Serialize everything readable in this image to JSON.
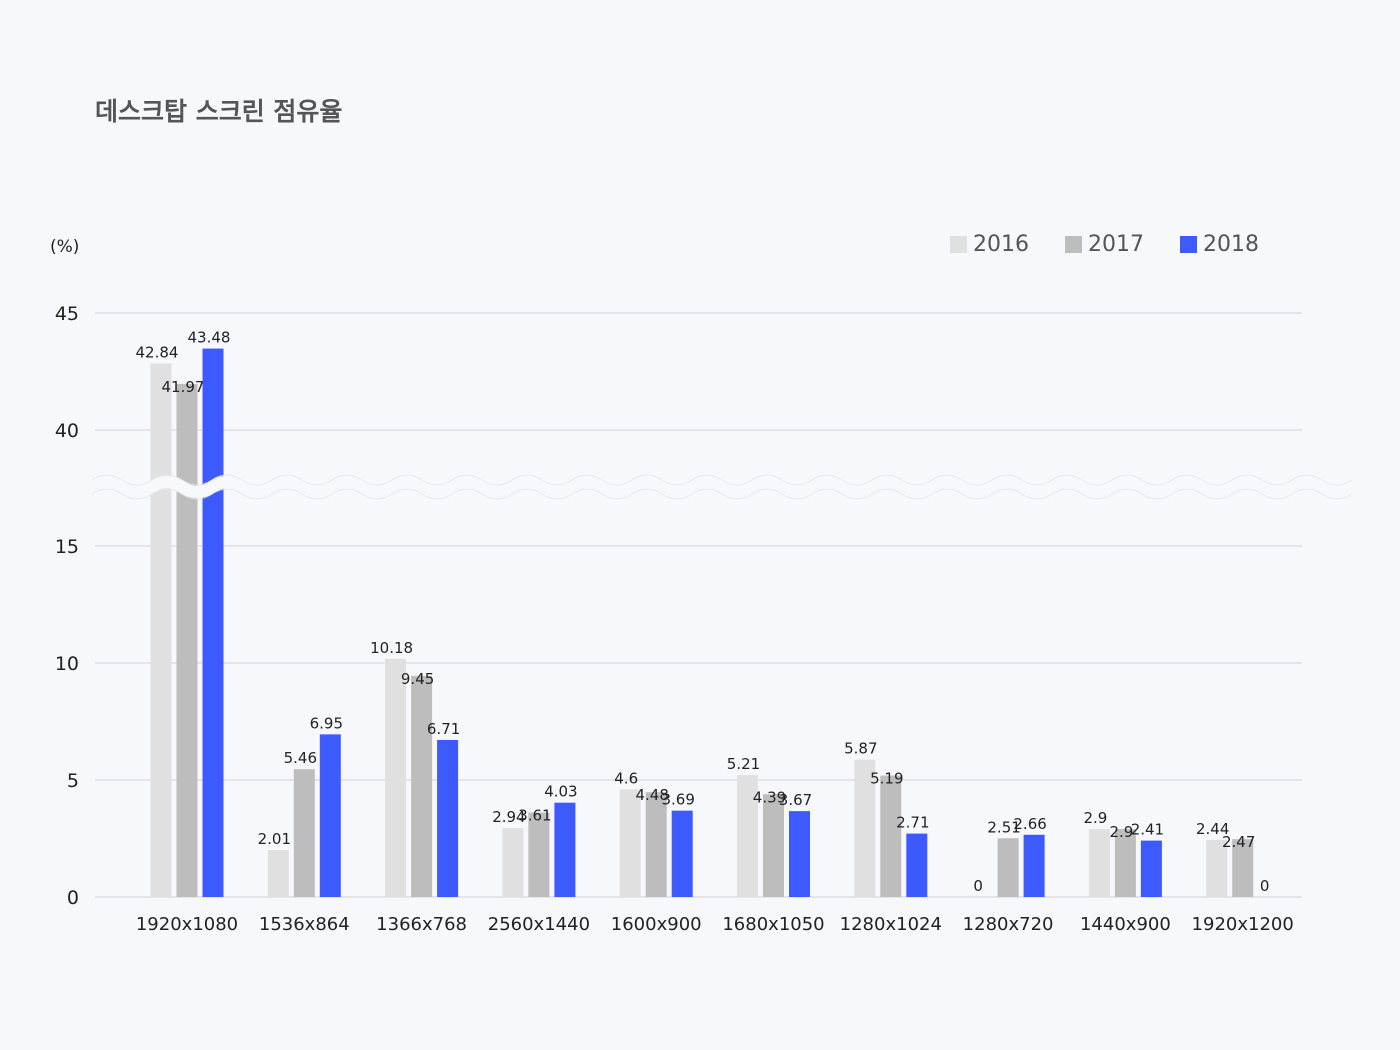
{
  "title": "데스크탑 스크린 점유율",
  "chart_data": {
    "type": "bar",
    "title": "데스크탑 스크린 점유율",
    "ylabel": "(%)",
    "xlabel": "",
    "categories": [
      "1920x1080",
      "1536x864",
      "1366x768",
      "2560x1440",
      "1600x900",
      "1680x1050",
      "1280x1024",
      "1280x720",
      "1440x900",
      "1920x1200"
    ],
    "series": [
      {
        "name": "2016",
        "color": "#e0e0e0",
        "values": [
          42.84,
          2.01,
          10.18,
          2.94,
          4.6,
          5.21,
          5.87,
          0,
          2.9,
          2.44
        ]
      },
      {
        "name": "2017",
        "color": "#bdbdbd",
        "values": [
          41.97,
          5.46,
          9.45,
          3.61,
          4.48,
          4.39,
          5.19,
          2.51,
          2.9,
          2.47
        ]
      },
      {
        "name": "2018",
        "color": "#3d5afe",
        "values": [
          43.48,
          6.95,
          6.71,
          4.03,
          3.69,
          3.67,
          2.71,
          2.66,
          2.41,
          0
        ]
      }
    ],
    "yticks": [
      "0",
      "5",
      "10",
      "15",
      "40",
      "45"
    ],
    "ylim": [
      0,
      45
    ],
    "axis_break": [
      17.5,
      38
    ],
    "grid": true,
    "legend": "top-right"
  }
}
